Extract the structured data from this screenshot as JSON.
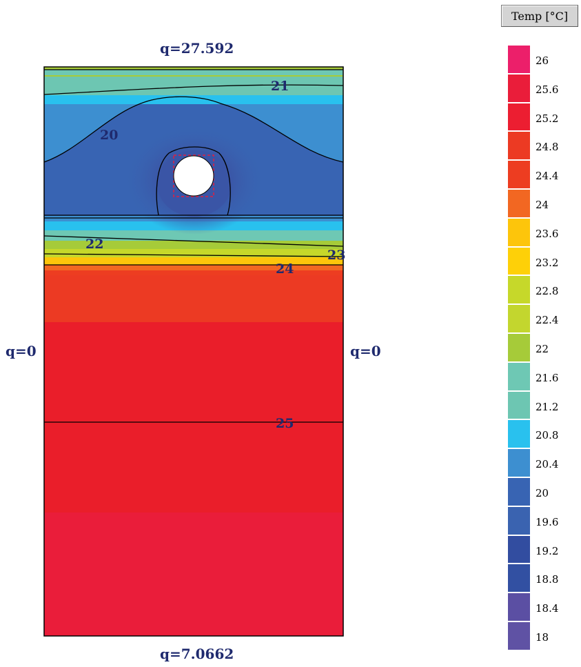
{
  "legend": {
    "header": "Temp [°C]",
    "items": [
      {
        "label": "26",
        "color": "#ec1f6a"
      },
      {
        "label": "25.6",
        "color": "#ea1d3a"
      },
      {
        "label": "25.2",
        "color": "#ec1e31"
      },
      {
        "label": "24.8",
        "color": "#ec3a23"
      },
      {
        "label": "24.4",
        "color": "#ed3d21"
      },
      {
        "label": "24",
        "color": "#f26722"
      },
      {
        "label": "23.6",
        "color": "#fdc50b"
      },
      {
        "label": "23.2",
        "color": "#fed008"
      },
      {
        "label": "22.8",
        "color": "#c6d82a"
      },
      {
        "label": "22.4",
        "color": "#c3d62e"
      },
      {
        "label": "22",
        "color": "#a6cb39"
      },
      {
        "label": "21.6",
        "color": "#6ec8b4"
      },
      {
        "label": "21.2",
        "color": "#6dc6b2"
      },
      {
        "label": "20.8",
        "color": "#29c1ee"
      },
      {
        "label": "20.4",
        "color": "#3d8fd0"
      },
      {
        "label": "20",
        "color": "#3864b3"
      },
      {
        "label": "19.6",
        "color": "#3a63b0"
      },
      {
        "label": "19.2",
        "color": "#324da0"
      },
      {
        "label": "18.8",
        "color": "#3250a2"
      },
      {
        "label": "18.4",
        "color": "#5b4fa3"
      },
      {
        "label": "18",
        "color": "#5f52a4"
      }
    ]
  },
  "boundary_labels": {
    "top": "q=27.592",
    "bottom": "q=7.0662",
    "left": "q=0",
    "right": "q=0"
  },
  "contour_labels": [
    "21",
    "20",
    "22",
    "23",
    "24",
    "25"
  ],
  "colors": {
    "label_text": "#1f2a6e",
    "contour_line": "#000000",
    "source_marker": "#e02040"
  }
}
